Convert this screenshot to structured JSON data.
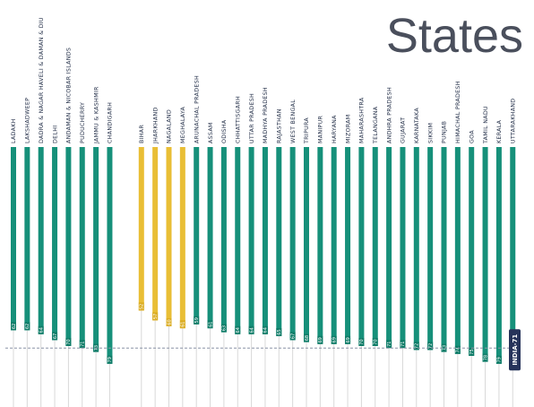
{
  "title": "States",
  "colors": {
    "teal": "#16907a",
    "teal_dark": "#0e7a66",
    "yellow": "#e9be35",
    "label": "#1e2a44",
    "stem": "#d8d8d8",
    "india_box": "#26335a",
    "title": "#4a4f5c"
  },
  "reference": {
    "label": "INDIA-71",
    "value": 71,
    "style": "dashed"
  },
  "chart_data": {
    "type": "bar",
    "title": "States",
    "orientation": "vertical, labels rotated -90",
    "groups": [
      "union_territories",
      "bottom_states",
      "states"
    ],
    "categories": [
      "LADAKH",
      "LAKSHADWEEP",
      "DADRA & NAGAR HAVELI & DAMAN & DIU",
      "DELHI",
      "ANDAMAN & NICOBAR ISLANDS",
      "PUDUCHERRY",
      "JAMMU & KASHMIR",
      "CHANDIGARH",
      "BIHAR",
      "JHARKHAND",
      "NAGALAND",
      "MEGHALAYA",
      "ARUNACHAL PRADESH",
      "ASSAM",
      "ODISHA",
      "CHHATTISGARH",
      "UTTAR PRADESH",
      "MADHYA PRADESH",
      "RAJASTHAN",
      "WEST BENGAL",
      "TRIPURA",
      "MANIPUR",
      "HARYANA",
      "MIZORAM",
      "MAHARASHTRA",
      "TELANGANA",
      "ANDHRA PRADESH",
      "GUJARAT",
      "KARNATAKA",
      "SIKKIM",
      "PUNJAB",
      "HIMACHAL PRADESH",
      "GOA",
      "TAMIL NADU",
      "KERALA",
      "UTTARAKHAND"
    ],
    "values": [
      62,
      62,
      64,
      67,
      70,
      71,
      73,
      79,
      52,
      57,
      60,
      61,
      59,
      61,
      63,
      64,
      64,
      64,
      65,
      67,
      68,
      69,
      69,
      69,
      70,
      70,
      71,
      71,
      72,
      72,
      73,
      74,
      75,
      78,
      79,
      80
    ],
    "value_labels": [
      "62",
      "62",
      "64",
      "67",
      "70",
      "71",
      "73",
      "79",
      "52",
      "57",
      "60",
      "61",
      "59",
      "61",
      "63",
      "64",
      "64",
      "64",
      "65",
      "67",
      "68",
      "69",
      "69",
      "69",
      "70",
      "70",
      "71",
      "71",
      "72",
      "72",
      "73",
      "74",
      "75",
      "78",
      "79",
      "80"
    ],
    "colors": [
      "teal",
      "teal",
      "teal",
      "teal",
      "teal",
      "teal",
      "teal",
      "teal",
      "yellow",
      "yellow",
      "yellow",
      "yellow",
      "teal",
      "teal",
      "teal",
      "teal",
      "teal",
      "teal",
      "teal",
      "teal",
      "teal",
      "teal",
      "teal",
      "teal",
      "teal",
      "teal",
      "teal",
      "teal",
      "teal",
      "teal",
      "teal",
      "teal",
      "teal",
      "teal",
      "teal",
      "teal"
    ],
    "ylim": [
      0,
      100
    ],
    "axis": "none",
    "grid": false
  }
}
